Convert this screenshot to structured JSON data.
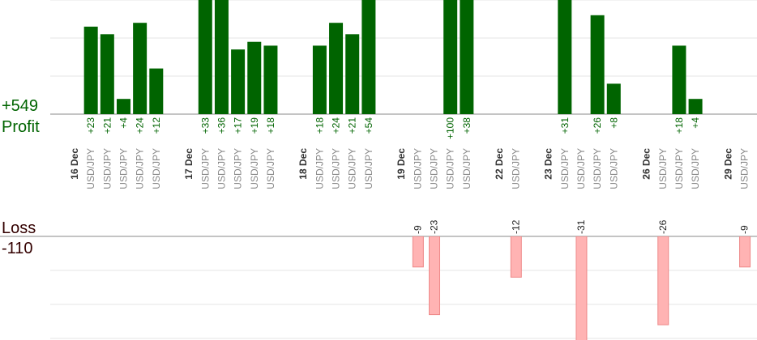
{
  "chart_data": {
    "type": "profit-loss-bars",
    "profit": {
      "label": "Profit",
      "total": "+549",
      "color": "#006400",
      "ylim": [
        0,
        30
      ],
      "yticks": [
        0,
        10,
        20,
        30
      ]
    },
    "loss": {
      "label": "Loss",
      "total": "-110",
      "color": "#ffb3b3",
      "ylim": [
        -30,
        0
      ],
      "yticks": [
        -30,
        -20,
        -10,
        0
      ]
    },
    "days": [
      {
        "date": "16 Dec",
        "trades": [
          {
            "pair": "USD/JPY",
            "value": 23,
            "value_label": "+23"
          },
          {
            "pair": "USD/JPY",
            "value": 21,
            "value_label": "+21"
          },
          {
            "pair": "USD/JPY",
            "value": 4,
            "value_label": "+4"
          },
          {
            "pair": "USD/JPY",
            "value": 24,
            "value_label": "+24"
          },
          {
            "pair": "USD/JPY",
            "value": 12,
            "value_label": "+12"
          }
        ]
      },
      {
        "date": "17 Dec",
        "trades": [
          {
            "pair": "USD/JPY",
            "value": 33,
            "value_label": "+33"
          },
          {
            "pair": "USD/JPY",
            "value": 36,
            "value_label": "+36"
          },
          {
            "pair": "USD/JPY",
            "value": 17,
            "value_label": "+17"
          },
          {
            "pair": "USD/JPY",
            "value": 19,
            "value_label": "+19"
          },
          {
            "pair": "USD/JPY",
            "value": 18,
            "value_label": "+18"
          }
        ]
      },
      {
        "date": "18 Dec",
        "trades": [
          {
            "pair": "USD/JPY",
            "value": 18,
            "value_label": "+18"
          },
          {
            "pair": "USD/JPY",
            "value": 24,
            "value_label": "+24"
          },
          {
            "pair": "USD/JPY",
            "value": 21,
            "value_label": "+21"
          },
          {
            "pair": "USD/JPY",
            "value": 54,
            "value_label": "+54"
          }
        ]
      },
      {
        "date": "19 Dec",
        "trades": [
          {
            "pair": "USD/JPY",
            "value": -9
          },
          {
            "pair": "USD/JPY",
            "value": -23
          },
          {
            "pair": "USD/JPY",
            "value": 100,
            "value_label": "+100"
          },
          {
            "pair": "USD/JPY",
            "value": 38,
            "value_label": "+38"
          }
        ]
      },
      {
        "date": "22 Dec",
        "trades": [
          {
            "pair": "USD/JPY",
            "value": -12
          }
        ]
      },
      {
        "date": "23 Dec",
        "trades": [
          {
            "pair": "USD/JPY",
            "value": 31,
            "value_label": "+31"
          },
          {
            "pair": "USD/JPY",
            "value": -31
          },
          {
            "pair": "USD/JPY",
            "value": 26,
            "value_label": "+26"
          },
          {
            "pair": "USD/JPY",
            "value": 8,
            "value_label": "+8"
          }
        ]
      },
      {
        "date": "26 Dec",
        "trades": [
          {
            "pair": "USD/JPY",
            "value": -26
          },
          {
            "pair": "USD/JPY",
            "value": 18,
            "value_label": "+18"
          },
          {
            "pair": "USD/JPY",
            "value": 4,
            "value_label": "+4"
          }
        ]
      },
      {
        "date": "29 Dec",
        "trades": [
          {
            "pair": "USD/JPY",
            "value": -9
          }
        ]
      }
    ]
  }
}
